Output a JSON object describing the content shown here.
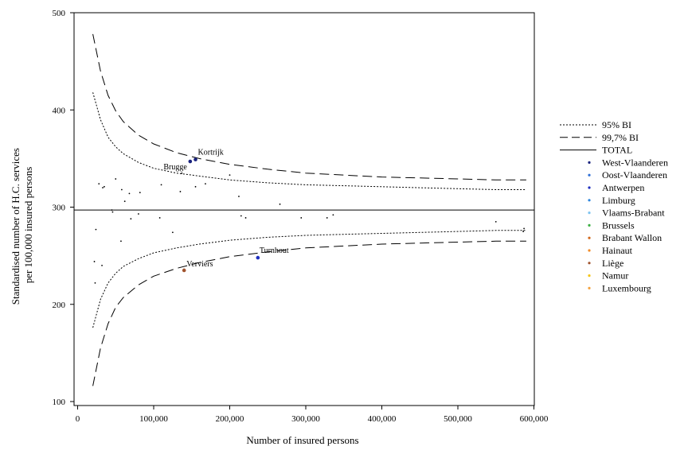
{
  "chart_data": {
    "type": "scatter",
    "xlabel": "Number of insured persons",
    "ylabel_lines": [
      "Standardised number of H.C. services",
      "per 100,000 insured persons"
    ],
    "xlim": [
      0,
      600000
    ],
    "ylim": [
      100,
      500
    ],
    "x_ticks": [
      0,
      100000,
      200000,
      300000,
      400000,
      500000,
      600000
    ],
    "x_tick_labels": [
      "0",
      "100,000",
      "200,000",
      "300,000",
      "400,000",
      "500,000",
      "600,000"
    ],
    "y_ticks": [
      100,
      200,
      300,
      400,
      500
    ],
    "y_tick_labels": [
      "100",
      "200",
      "300",
      "400",
      "500"
    ],
    "total": 297,
    "funnel_series": [
      {
        "name": "95% BI",
        "style": "dotted",
        "x": [
          20000,
          30000,
          40000,
          50000,
          60000,
          80000,
          100000,
          130000,
          160000,
          200000,
          250000,
          300000,
          350000,
          400000,
          450000,
          500000,
          550000,
          590000
        ],
        "upper": [
          418,
          390,
          372,
          362,
          355,
          346,
          340,
          335,
          332,
          328,
          325,
          323,
          322,
          321,
          320,
          319,
          318,
          318
        ],
        "lower": [
          176,
          205,
          222,
          232,
          239,
          247,
          253,
          258,
          262,
          266,
          269,
          271,
          272,
          273,
          274,
          275,
          276,
          276
        ]
      },
      {
        "name": "99,7% BI",
        "style": "dashed",
        "x": [
          20000,
          30000,
          40000,
          50000,
          60000,
          80000,
          100000,
          130000,
          160000,
          200000,
          250000,
          300000,
          350000,
          400000,
          450000,
          500000,
          550000,
          590000
        ],
        "upper": [
          478,
          440,
          415,
          399,
          388,
          374,
          365,
          356,
          350,
          344,
          339,
          335,
          333,
          331,
          330,
          329,
          328,
          328
        ],
        "lower": [
          116,
          155,
          180,
          197,
          207,
          220,
          229,
          237,
          243,
          249,
          254,
          258,
          260,
          262,
          263,
          264,
          265,
          265
        ]
      }
    ],
    "legend": [
      {
        "label": "95% BI",
        "kind": "dotted"
      },
      {
        "label": "99,7% BI",
        "kind": "dashed"
      },
      {
        "label": "TOTAL",
        "kind": "solid"
      },
      {
        "label": "West-Vlaanderen",
        "kind": "dot",
        "color": "#1a237e"
      },
      {
        "label": "Oost-Vlaanderen",
        "kind": "dot",
        "color": "#2f6fd6"
      },
      {
        "label": "Antwerpen",
        "kind": "dot",
        "color": "#1f2fbf"
      },
      {
        "label": "Limburg",
        "kind": "dot",
        "color": "#2e86de"
      },
      {
        "label": "Vlaams-Brabant",
        "kind": "dot",
        "color": "#7fc4f0"
      },
      {
        "label": "Brussels",
        "kind": "dot",
        "color": "#3cb043"
      },
      {
        "label": "Brabant Wallon",
        "kind": "dot",
        "color": "#d2691e"
      },
      {
        "label": "Hainaut",
        "kind": "dot",
        "color": "#f28c28"
      },
      {
        "label": "Liège",
        "kind": "dot",
        "color": "#a0522d"
      },
      {
        "label": "Namur",
        "kind": "dot",
        "color": "#f5c518"
      },
      {
        "label": "Luxembourg",
        "kind": "dot",
        "color": "#f4a340"
      }
    ],
    "labeled_points": [
      {
        "label": "Kortrijk",
        "x": 155000,
        "y": 349,
        "color": "#1a237e"
      },
      {
        "label": "Brugge",
        "x": 148000,
        "y": 347,
        "color": "#1a237e"
      },
      {
        "label": "Turnhout",
        "x": 237000,
        "y": 248,
        "color": "#1f2fbf"
      },
      {
        "label": "Verviers",
        "x": 140000,
        "y": 235,
        "color": "#a0522d"
      }
    ],
    "small_points": {
      "x": [
        22000,
        23000,
        24000,
        28000,
        32000,
        33000,
        35000,
        45000,
        46000,
        50000,
        57000,
        58000,
        62000,
        68000,
        70000,
        80000,
        82000,
        108000,
        110000,
        125000,
        135000,
        137000,
        155000,
        168000,
        200000,
        212000,
        215000,
        221000,
        266000,
        294000,
        328000,
        336000,
        550000,
        586000,
        587000
      ],
      "y": [
        244,
        222,
        277,
        324,
        240,
        320,
        321,
        297,
        295,
        329,
        265,
        318,
        306,
        314,
        288,
        293,
        315,
        289,
        323,
        274,
        316,
        335,
        321,
        324,
        333,
        311,
        291,
        289,
        303,
        289,
        289,
        292,
        285,
        275,
        278
      ]
    }
  }
}
